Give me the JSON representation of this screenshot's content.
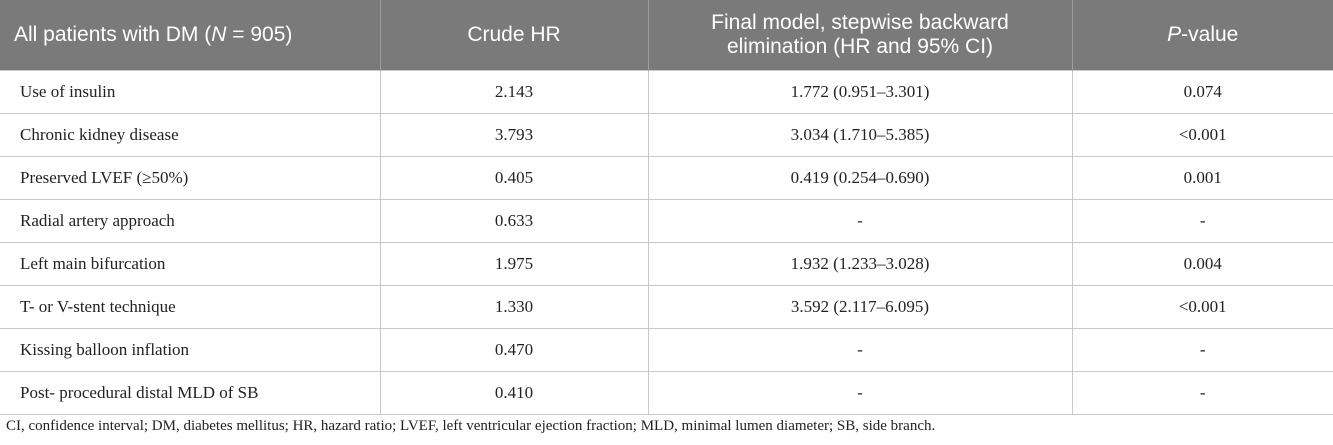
{
  "table": {
    "headers": {
      "col1_pre": "All patients with DM (",
      "col1_var": "N",
      "col1_post": " = 905)",
      "col2": "Crude HR",
      "col3": "Final model, stepwise backward elimination (HR and 95% CI)",
      "col4_var": "P",
      "col4_post": "-value"
    },
    "rows": [
      {
        "variable": "Use of insulin",
        "crude_hr": "2.143",
        "final_model": "1.772 (0.951–3.301)",
        "p_value": "0.074"
      },
      {
        "variable": "Chronic kidney disease",
        "crude_hr": "3.793",
        "final_model": "3.034 (1.710–5.385)",
        "p_value": "<0.001"
      },
      {
        "variable": "Preserved LVEF (≥50%)",
        "crude_hr": "0.405",
        "final_model": "0.419 (0.254–0.690)",
        "p_value": "0.001"
      },
      {
        "variable": "Radial artery approach",
        "crude_hr": "0.633",
        "final_model": "-",
        "p_value": "-"
      },
      {
        "variable": "Left main bifurcation",
        "crude_hr": "1.975",
        "final_model": "1.932 (1.233–3.028)",
        "p_value": "0.004"
      },
      {
        "variable": "T- or V-stent technique",
        "crude_hr": "1.330",
        "final_model": "3.592 (2.117–6.095)",
        "p_value": "<0.001"
      },
      {
        "variable": "Kissing balloon inflation",
        "crude_hr": "0.470",
        "final_model": "-",
        "p_value": "-"
      },
      {
        "variable": "Post- procedural distal MLD of SB",
        "crude_hr": "0.410",
        "final_model": "-",
        "p_value": "-"
      }
    ]
  },
  "footnote": "CI, confidence interval; DM, diabetes mellitus; HR, hazard ratio; LVEF, left ventricular ejection fraction; MLD, minimal lumen diameter; SB, side branch."
}
